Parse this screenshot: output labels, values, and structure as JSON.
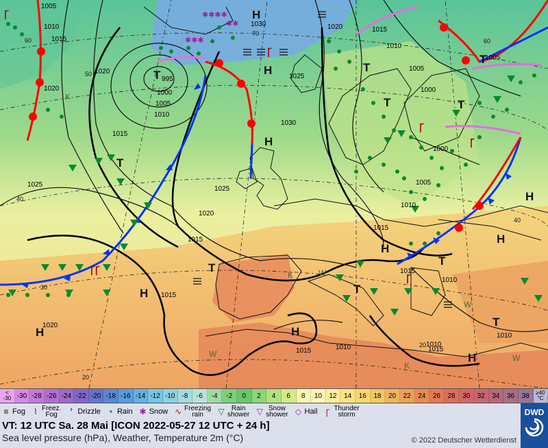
{
  "map": {
    "pressure_labels": [
      {
        "text": "1005"
      },
      {
        "text": "1010"
      },
      {
        "text": "1015"
      },
      {
        "text": "1030"
      },
      {
        "text": "1020"
      },
      {
        "text": "1015"
      },
      {
        "text": "1010"
      },
      {
        "text": "1005"
      },
      {
        "text": "1000"
      },
      {
        "text": "995"
      },
      {
        "text": "1000"
      },
      {
        "text": "1005"
      },
      {
        "text": "1010"
      },
      {
        "text": "1020"
      },
      {
        "text": "1020"
      },
      {
        "text": "1015"
      },
      {
        "text": "1025"
      },
      {
        "text": "1030"
      },
      {
        "text": "1025"
      },
      {
        "text": "1020"
      },
      {
        "text": "1015"
      },
      {
        "text": "1015"
      },
      {
        "text": "1020"
      },
      {
        "text": "1015"
      },
      {
        "text": "1015"
      },
      {
        "text": "1010"
      },
      {
        "text": "1015"
      },
      {
        "text": "1010"
      },
      {
        "text": "1000"
      },
      {
        "text": "1005"
      },
      {
        "text": "1010"
      },
      {
        "text": "1010"
      },
      {
        "text": "1010"
      },
      {
        "text": "1005"
      },
      {
        "text": "1025"
      },
      {
        "text": "1015"
      }
    ],
    "pressure_centers": [
      {
        "text": "H"
      },
      {
        "text": "H"
      },
      {
        "text": "H"
      },
      {
        "text": "H"
      },
      {
        "text": "H"
      },
      {
        "text": "H"
      },
      {
        "text": "H"
      },
      {
        "text": "H"
      },
      {
        "text": "H"
      },
      {
        "text": "H"
      },
      {
        "text": "T"
      },
      {
        "text": "T"
      },
      {
        "text": "T"
      },
      {
        "text": "T"
      },
      {
        "text": "T"
      },
      {
        "text": "T"
      },
      {
        "text": "T"
      },
      {
        "text": "T"
      },
      {
        "text": "T"
      },
      {
        "text": "T"
      }
    ],
    "lat_labels": [
      "60",
      "50",
      "40",
      "30",
      "20",
      "60",
      "40",
      "20",
      "70"
    ],
    "wind_marks": [
      "K",
      "W",
      "W",
      "K",
      "W",
      "W",
      "K"
    ],
    "colors": {
      "ocean": "#7fd07a",
      "warm": "#f5d67a",
      "hot": "#ee8b55",
      "cold": "#8fb8e8",
      "front_warm": "#ff0000",
      "front_cold": "#0033ff",
      "occluded": "#dd66dd"
    }
  },
  "colorbar": {
    "first": {
      "line1": "<",
      "line2": "-30"
    },
    "values": [
      "-30",
      "-28",
      "-26",
      "-24",
      "-22",
      "-20",
      "-18",
      "-16",
      "-14",
      "-12",
      "-10",
      "-8",
      "-6",
      "-4",
      "-2",
      "0",
      "2",
      "4",
      "6",
      "8",
      "10",
      "12",
      "14",
      "16",
      "18",
      "20",
      "22",
      "24",
      "26",
      "28",
      "30",
      "32",
      "34",
      "36",
      "38"
    ],
    "last": {
      "line1": "≥40",
      "line2": "°C"
    },
    "colors": [
      "#e8a3f0",
      "#d48ae6",
      "#c27ad8",
      "#b06fd0",
      "#9c6ac8",
      "#7f68c6",
      "#6573cb",
      "#5a86d4",
      "#5b9bdb",
      "#66b1e0",
      "#79c4e4",
      "#8fd1e3",
      "#a6dbe2",
      "#b8e3d9",
      "#9fd9a4",
      "#7fcf7d",
      "#6bc66a",
      "#8ed57a",
      "#b2e080",
      "#d2ea8a",
      "#f2f6b0",
      "#fff5b8",
      "#fbee9c",
      "#f8e383",
      "#f6d76f",
      "#f2c863",
      "#efb45c",
      "#ec9f56",
      "#e98b53",
      "#e47a56",
      "#dd6c5c",
      "#d26666",
      "#c66571",
      "#b6677d",
      "#a66e87",
      "#977698"
    ]
  },
  "legend": [
    {
      "label": "Fog",
      "icon": "fog-icon"
    },
    {
      "label": "Freez.\nFog",
      "icon": "freezing-fog-icon"
    },
    {
      "label": "Drizzle",
      "icon": "drizzle-icon"
    },
    {
      "label": "Rain",
      "icon": "rain-icon"
    },
    {
      "label": "Snow",
      "icon": "snow-icon"
    },
    {
      "label": "Freezing\nrain",
      "icon": "freezing-rain-icon"
    },
    {
      "label": "Rain\nshower",
      "icon": "rain-shower-icon"
    },
    {
      "label": "Snow\nshower",
      "icon": "snow-shower-icon"
    },
    {
      "label": "Hail",
      "icon": "hail-icon"
    },
    {
      "label": "Thunder\nstorm",
      "icon": "thunderstorm-icon"
    }
  ],
  "footer": {
    "vt": "VT: 12 UTC Sa.  28 Mai [ICON 2022-05-27  12 UTC + 24 h]",
    "desc": "Sea level pressure (hPa), Weather, Temperature 2m (°C)",
    "copyright": "© 2022 Deutscher Wetterdienst"
  },
  "logo": {
    "text": "DWD"
  }
}
